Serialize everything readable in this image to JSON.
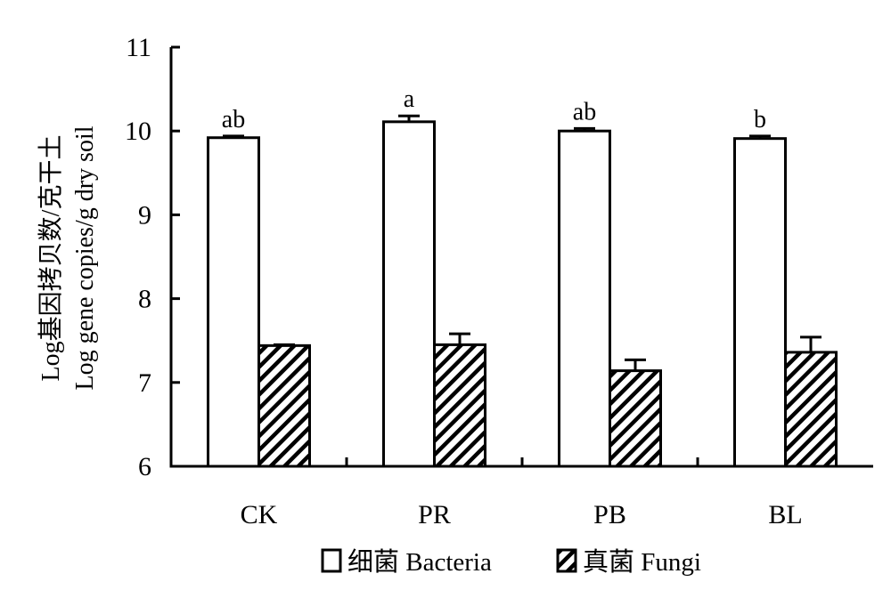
{
  "chart_data": {
    "type": "bar",
    "categories": [
      "CK",
      "PR",
      "PB",
      "BL"
    ],
    "ylabel_line1": "Log基因拷贝数/克干土",
    "ylabel_line2": "Log gene copies/g dry soil",
    "ylim": [
      6,
      11
    ],
    "yticks": [
      "6",
      "7",
      "8",
      "9",
      "10",
      "11"
    ],
    "series": [
      {
        "name": "细菌 Bacteria",
        "pattern": "open",
        "values": [
          9.92,
          10.11,
          10.0,
          9.91
        ],
        "errors": [
          0.02,
          0.07,
          0.03,
          0.03
        ],
        "significance": [
          "ab",
          "a",
          "ab",
          "b"
        ]
      },
      {
        "name": "真菌 Fungi",
        "pattern": "hatched",
        "values": [
          7.44,
          7.45,
          7.14,
          7.36
        ],
        "errors": [
          0.01,
          0.13,
          0.13,
          0.18
        ],
        "significance": [
          "",
          "",
          "",
          ""
        ]
      }
    ],
    "grid": false,
    "legend_position": "bottom-center",
    "colors": {
      "bar_fill": "#ffffff",
      "stroke": "#000000",
      "hatch": "#000000"
    }
  }
}
